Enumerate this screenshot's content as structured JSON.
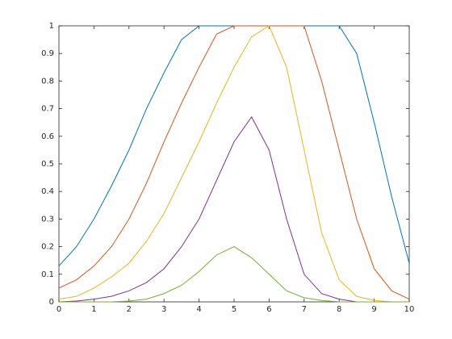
{
  "chart_data": {
    "type": "line",
    "x": [
      0,
      0.5,
      1,
      1.5,
      2,
      2.5,
      3,
      3.5,
      4,
      4.5,
      5,
      5.5,
      6,
      6.5,
      7,
      7.5,
      8,
      8.5,
      9,
      9.5,
      10
    ],
    "series": [
      {
        "color": "#0072BD",
        "values": [
          0.13,
          0.2,
          0.3,
          0.42,
          0.55,
          0.7,
          0.83,
          0.95,
          1,
          1,
          1,
          1,
          1,
          1,
          1,
          1,
          1,
          0.9,
          0.65,
          0.38,
          0.14
        ]
      },
      {
        "color": "#D95319",
        "values": [
          0.05,
          0.08,
          0.13,
          0.2,
          0.3,
          0.43,
          0.58,
          0.72,
          0.85,
          0.97,
          1,
          1,
          1,
          1,
          1,
          0.8,
          0.55,
          0.3,
          0.12,
          0.04,
          0.01
        ]
      },
      {
        "color": "#EDB120",
        "values": [
          0.01,
          0.02,
          0.05,
          0.09,
          0.14,
          0.22,
          0.32,
          0.45,
          0.58,
          0.72,
          0.85,
          0.96,
          1,
          0.85,
          0.55,
          0.25,
          0.08,
          0.02,
          0.005,
          0,
          0
        ]
      },
      {
        "color": "#7E2F8E",
        "values": [
          0,
          0.003,
          0.01,
          0.02,
          0.04,
          0.07,
          0.12,
          0.2,
          0.3,
          0.44,
          0.58,
          0.67,
          0.55,
          0.3,
          0.1,
          0.03,
          0.01,
          0,
          0,
          0,
          0
        ]
      },
      {
        "color": "#77AC30",
        "values": [
          0,
          0,
          0,
          0,
          0.003,
          0.01,
          0.03,
          0.06,
          0.11,
          0.17,
          0.2,
          0.16,
          0.1,
          0.04,
          0.015,
          0.005,
          0,
          0,
          0,
          0,
          0
        ]
      }
    ],
    "xlim": [
      0,
      10
    ],
    "xticks": [
      0,
      1,
      2,
      3,
      4,
      5,
      6,
      7,
      8,
      9,
      10
    ],
    "ylim": [
      0,
      1
    ],
    "yticks": [
      0,
      0.1,
      0.2,
      0.3,
      0.4,
      0.5,
      0.6,
      0.7,
      0.8,
      0.9,
      1
    ],
    "grid": false
  }
}
